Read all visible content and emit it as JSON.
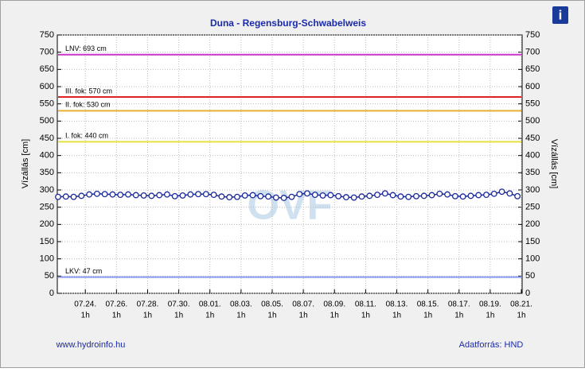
{
  "chart_data": {
    "type": "line",
    "title": "Duna - Regensburg-Schwabelweis",
    "y_label": "Vízállás [cm]",
    "y2_label": "Vízállás [cm]",
    "watermark": "OVF",
    "footer_left": "www.hydroinfo.hu",
    "footer_right": "Adatforrás: HND",
    "ylim": [
      0,
      750
    ],
    "yticks": [
      0,
      50,
      100,
      150,
      200,
      250,
      300,
      350,
      400,
      450,
      500,
      550,
      600,
      650,
      700,
      750
    ],
    "y2lim": [
      0,
      750
    ],
    "y2ticks": [
      0,
      50,
      100,
      150,
      200,
      250,
      300,
      350,
      400,
      450,
      500,
      550,
      600,
      650,
      700,
      750
    ],
    "xlim": [
      -1.8,
      28.05
    ],
    "xticks": [
      {
        "value": 0,
        "label": "07.24.",
        "hour": "1h"
      },
      {
        "value": 2,
        "label": "07.26.",
        "hour": "1h"
      },
      {
        "value": 4,
        "label": "07.28.",
        "hour": "1h"
      },
      {
        "value": 6,
        "label": "07.30.",
        "hour": "1h"
      },
      {
        "value": 8,
        "label": "08.01.",
        "hour": "1h"
      },
      {
        "value": 10,
        "label": "08.03.",
        "hour": "1h"
      },
      {
        "value": 12,
        "label": "08.05.",
        "hour": "1h"
      },
      {
        "value": 14,
        "label": "08.07.",
        "hour": "1h"
      },
      {
        "value": 16,
        "label": "08.09.",
        "hour": "1h"
      },
      {
        "value": 18,
        "label": "08.11.",
        "hour": "1h"
      },
      {
        "value": 20,
        "label": "08.13.",
        "hour": "1h"
      },
      {
        "value": 22,
        "label": "08.15.",
        "hour": "1h"
      },
      {
        "value": 24,
        "label": "08.17.",
        "hour": "1h"
      },
      {
        "value": 26,
        "label": "08.19.",
        "hour": "1h"
      },
      {
        "value": 28,
        "label": "08.21.",
        "hour": "1h"
      }
    ],
    "grid": true,
    "thresholds": [
      {
        "label": "LNV: 693 cm",
        "value": 693,
        "color": "#cc33cc"
      },
      {
        "label": "III. fok: 570 cm",
        "value": 570,
        "color": "#dd2222"
      },
      {
        "label": "II. fok: 530 cm",
        "value": 530,
        "color": "#e8b030"
      },
      {
        "label": "I. fok: 440 cm",
        "value": 440,
        "color": "#e8e040"
      },
      {
        "label": "LKV: 47 cm",
        "value": 47,
        "color": "#8899ee"
      }
    ],
    "series": [
      {
        "color": "#1a2a9a",
        "x": [
          -1.75,
          -1.25,
          -0.75,
          -0.25,
          0.25,
          0.75,
          1.25,
          1.75,
          2.25,
          2.75,
          3.25,
          3.75,
          4.25,
          4.75,
          5.25,
          5.75,
          6.25,
          6.75,
          7.25,
          7.75,
          8.25,
          8.75,
          9.25,
          9.75,
          10.25,
          10.75,
          11.25,
          11.75,
          12.25,
          12.75,
          13.25,
          13.75,
          14.25,
          14.75,
          15.25,
          15.75,
          16.25,
          16.75,
          17.25,
          17.75,
          18.25,
          18.75,
          19.25,
          19.75,
          20.25,
          20.75,
          21.25,
          21.75,
          22.25,
          22.75,
          23.25,
          23.75,
          24.25,
          24.75,
          25.25,
          25.75,
          26.25,
          26.75,
          27.25,
          27.75
        ],
        "values": [
          280,
          281,
          280,
          283,
          287,
          289,
          288,
          287,
          286,
          287,
          285,
          284,
          283,
          285,
          287,
          282,
          284,
          287,
          288,
          288,
          286,
          281,
          279,
          280,
          284,
          285,
          282,
          281,
          278,
          277,
          280,
          288,
          290,
          286,
          284,
          285,
          282,
          279,
          278,
          281,
          283,
          286,
          290,
          285,
          281,
          280,
          282,
          283,
          285,
          289,
          287,
          282,
          281,
          283,
          285,
          286,
          289,
          295,
          290,
          282
        ]
      }
    ]
  }
}
